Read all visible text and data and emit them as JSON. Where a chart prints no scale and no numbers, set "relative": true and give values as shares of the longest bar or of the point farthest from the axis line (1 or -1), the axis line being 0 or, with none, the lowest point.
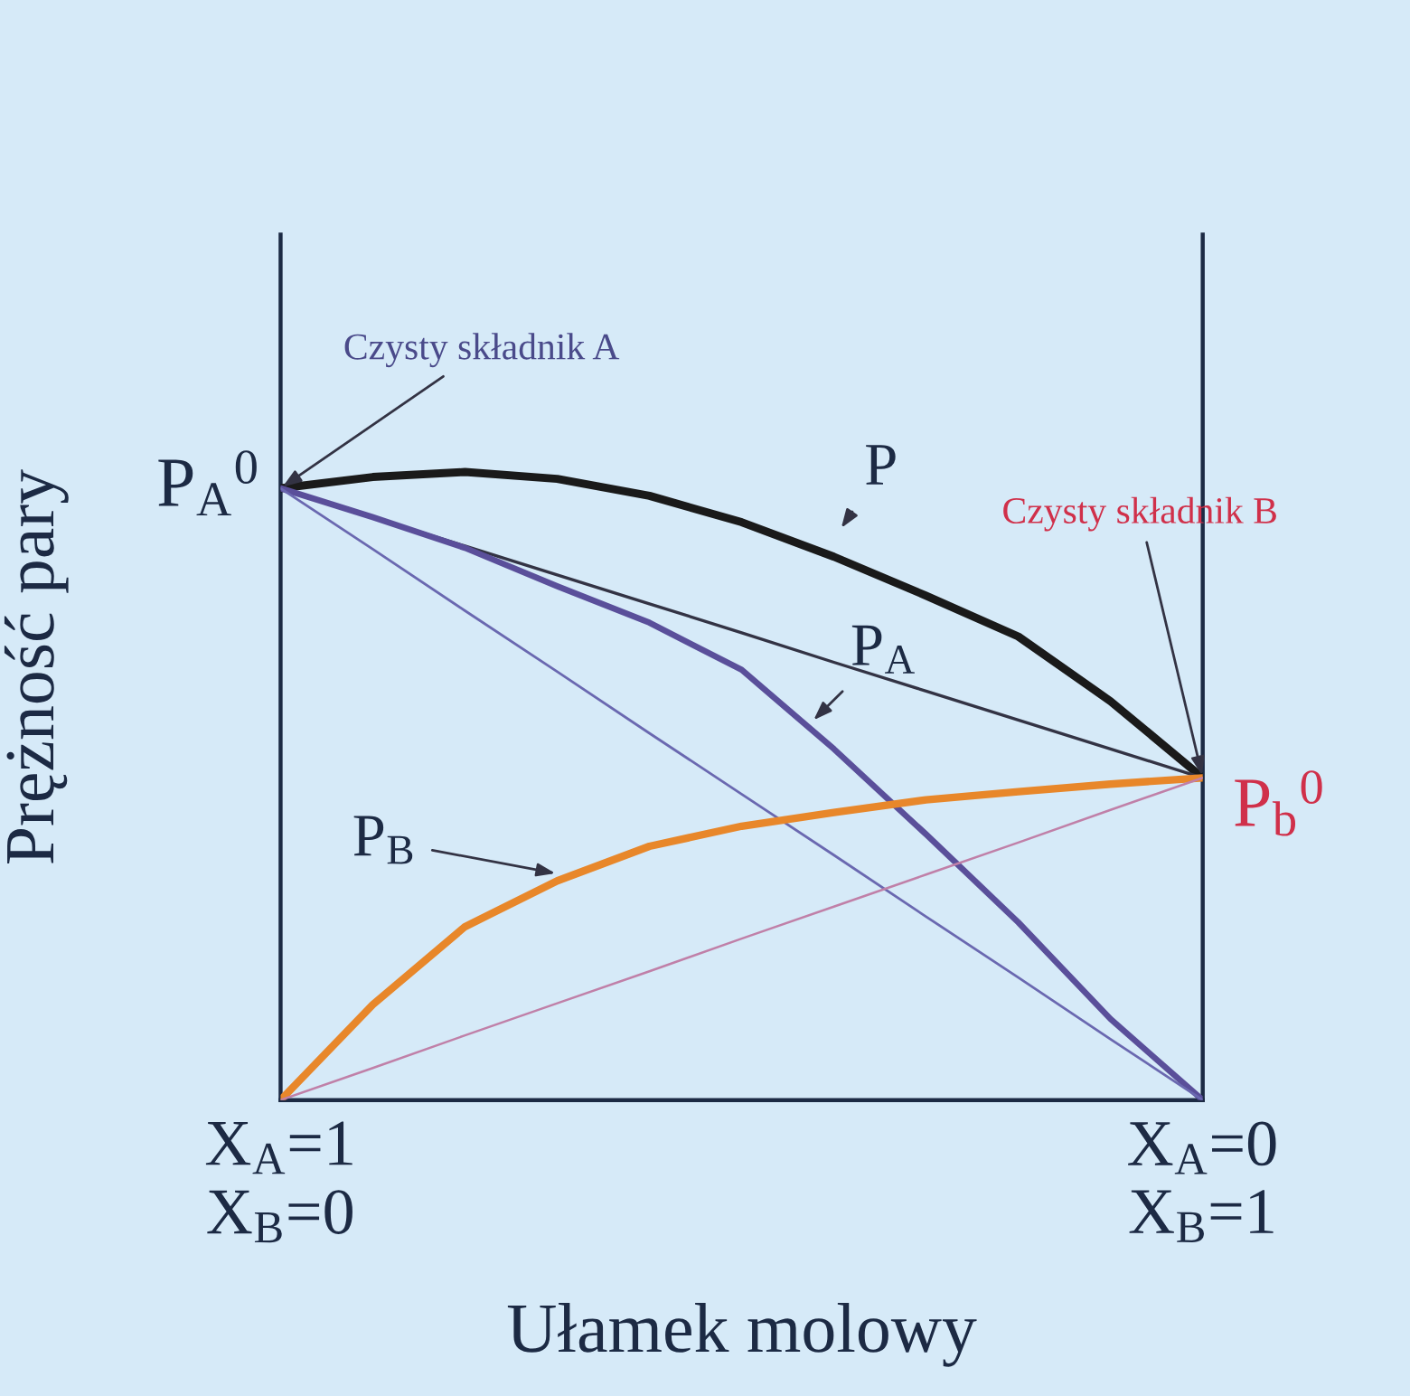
{
  "chart_data": {
    "type": "line",
    "relative": true,
    "xlabel": "Ułamek molowy",
    "ylabel": "Prężność pary",
    "categories": [
      "X$_{A}$=1\nX$_{B}$=0",
      null,
      null,
      null,
      null,
      null,
      null,
      null,
      null,
      null,
      "X$_{A}$=0\nX$_{B}$=1"
    ],
    "tick_labels": "x",
    "legend": false,
    "marker": "none",
    "line_style": "solid",
    "series": [
      {
        "color": "#1a1a1a",
        "values": [
          0.974,
          0.992,
          1.0,
          0.989,
          0.962,
          0.92,
          0.865,
          0.803,
          0.738,
          0.635,
          0.513
        ]
      },
      {
        "color": "#333344",
        "values": [
          0.974,
          0.928,
          0.882,
          0.836,
          0.79,
          0.744,
          0.697,
          0.651,
          0.605,
          0.559,
          0.513
        ]
      },
      {
        "color": "#5a4f9a",
        "values": [
          0.974,
          0.928,
          0.879,
          0.818,
          0.76,
          0.685,
          0.559,
          0.423,
          0.283,
          0.129,
          0
        ]
      },
      {
        "color": "#6a68b0",
        "values": [
          0.974,
          0.877,
          0.779,
          0.682,
          0.584,
          0.487,
          0.39,
          0.292,
          0.195,
          0.097,
          0
        ]
      },
      {
        "color": "#e8872a",
        "values": [
          0,
          0.152,
          0.276,
          0.349,
          0.404,
          0.436,
          0.458,
          0.478,
          0.491,
          0.503,
          0.513
        ]
      },
      {
        "color": "#c080a8",
        "values": [
          0,
          0.051,
          0.103,
          0.154,
          0.205,
          0.257,
          0.308,
          0.359,
          0.41,
          0.462,
          0.513
        ]
      }
    ],
    "annotations": [
      {
        "text": "Czysty składnik A",
        "x": "X$_{A}$=1\nX$_{B}$=0",
        "y": 0.974
      },
      {
        "text": "Czysty składnik B",
        "x": "X$_{A}$=0\nX$_{B}$=1",
        "y": 0.513
      },
      "P",
      "P$_{A}$",
      "P$_{B}$",
      {
        "text": "P$_{A}$$^{0}$",
        "x": "X$_{A}$=1\nX$_{B}$=0",
        "y": 0.974
      },
      {
        "text": "P$_{b}$$^{0}$",
        "x": "X$_{A}$=0\nX$_{B}$=1",
        "y": 0.513
      }
    ]
  }
}
